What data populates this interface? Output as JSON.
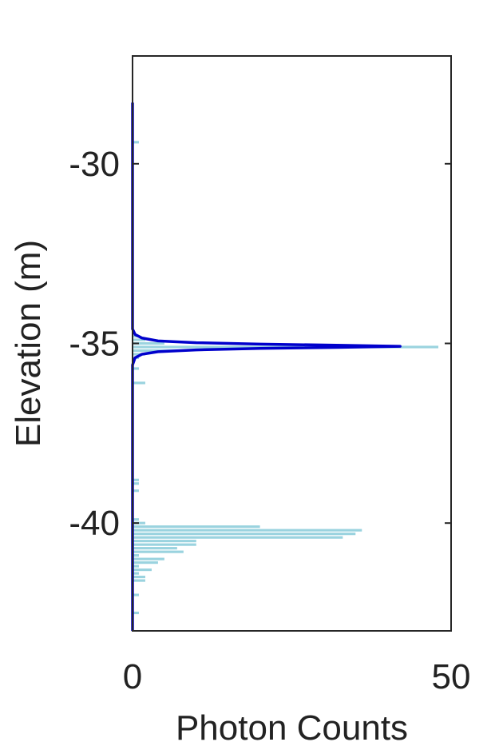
{
  "chart_data": {
    "type": "bar",
    "orientation": "horizontal",
    "title": "",
    "xlabel": "Photon Counts",
    "ylabel": "Elevation (m)",
    "xlim": [
      0,
      50
    ],
    "ylim": [
      -43,
      -27
    ],
    "xticks": [
      0,
      50
    ],
    "yticks": [
      -30,
      -35,
      -40
    ],
    "grid": false,
    "bin_height": 0.1,
    "series": [
      {
        "type": "histogram",
        "color": "#9ad3df",
        "bars": [
          {
            "y": -29.4,
            "count": 1
          },
          {
            "y": -34.8,
            "count": 1
          },
          {
            "y": -34.9,
            "count": 2
          },
          {
            "y": -35.0,
            "count": 5
          },
          {
            "y": -35.1,
            "count": 48
          },
          {
            "y": -35.2,
            "count": 7
          },
          {
            "y": -35.3,
            "count": 2
          },
          {
            "y": -35.4,
            "count": 1
          },
          {
            "y": -35.7,
            "count": 1
          },
          {
            "y": -36.1,
            "count": 2
          },
          {
            "y": -38.8,
            "count": 1
          },
          {
            "y": -38.9,
            "count": 1
          },
          {
            "y": -39.1,
            "count": 1
          },
          {
            "y": -39.9,
            "count": 1
          },
          {
            "y": -40.0,
            "count": 2
          },
          {
            "y": -40.1,
            "count": 20
          },
          {
            "y": -40.2,
            "count": 36
          },
          {
            "y": -40.3,
            "count": 35
          },
          {
            "y": -40.4,
            "count": 33
          },
          {
            "y": -40.5,
            "count": 10
          },
          {
            "y": -40.6,
            "count": 10
          },
          {
            "y": -40.7,
            "count": 7
          },
          {
            "y": -40.8,
            "count": 8
          },
          {
            "y": -40.9,
            "count": 1
          },
          {
            "y": -41.0,
            "count": 5
          },
          {
            "y": -41.1,
            "count": 4
          },
          {
            "y": -41.2,
            "count": 1
          },
          {
            "y": -41.3,
            "count": 3
          },
          {
            "y": -41.4,
            "count": 1
          },
          {
            "y": -41.5,
            "count": 2
          },
          {
            "y": -41.6,
            "count": 2
          },
          {
            "y": -42.0,
            "count": 1
          },
          {
            "y": -42.5,
            "count": 1
          }
        ]
      },
      {
        "type": "line",
        "color": "#0000cc",
        "points": [
          [
            0,
            -28.3
          ],
          [
            0,
            -34.6
          ],
          [
            0.4,
            -34.75
          ],
          [
            1.5,
            -34.85
          ],
          [
            4,
            -34.93
          ],
          [
            10,
            -34.98
          ],
          [
            20,
            -35.02
          ],
          [
            32,
            -35.05
          ],
          [
            42,
            -35.08
          ],
          [
            32,
            -35.11
          ],
          [
            20,
            -35.14
          ],
          [
            10,
            -35.18
          ],
          [
            4,
            -35.23
          ],
          [
            1.5,
            -35.3
          ],
          [
            0.4,
            -35.4
          ],
          [
            0,
            -35.6
          ],
          [
            0,
            -43
          ]
        ]
      }
    ]
  }
}
